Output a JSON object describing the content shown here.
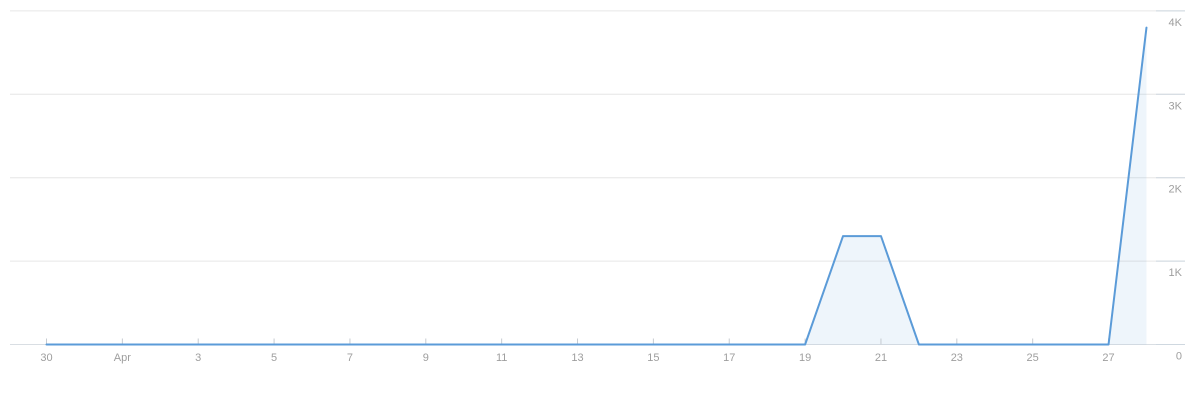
{
  "chart_data": {
    "type": "area",
    "title": "",
    "xlabel": "",
    "ylabel": "",
    "x": [
      "Mar 30",
      "Mar 31",
      "Apr 1",
      "Apr 2",
      "Apr 3",
      "Apr 4",
      "Apr 5",
      "Apr 6",
      "Apr 7",
      "Apr 8",
      "Apr 9",
      "Apr 10",
      "Apr 11",
      "Apr 12",
      "Apr 13",
      "Apr 14",
      "Apr 15",
      "Apr 16",
      "Apr 17",
      "Apr 18",
      "Apr 19",
      "Apr 20",
      "Apr 21",
      "Apr 22",
      "Apr 23",
      "Apr 24",
      "Apr 25",
      "Apr 26",
      "Apr 27",
      "Apr 28"
    ],
    "values": [
      0,
      0,
      0,
      0,
      0,
      0,
      0,
      0,
      0,
      0,
      0,
      0,
      0,
      0,
      0,
      0,
      0,
      0,
      0,
      0,
      0,
      1300,
      1300,
      0,
      0,
      0,
      0,
      0,
      0,
      3800
    ],
    "x_axis": {
      "ticks": [
        {
          "index": 0,
          "label": "30"
        },
        {
          "index": 2,
          "label": "Apr"
        },
        {
          "index": 4,
          "label": "3"
        },
        {
          "index": 6,
          "label": "5"
        },
        {
          "index": 8,
          "label": "7"
        },
        {
          "index": 10,
          "label": "9"
        },
        {
          "index": 12,
          "label": "11"
        },
        {
          "index": 14,
          "label": "13"
        },
        {
          "index": 16,
          "label": "15"
        },
        {
          "index": 18,
          "label": "17"
        },
        {
          "index": 20,
          "label": "19"
        },
        {
          "index": 22,
          "label": "21"
        },
        {
          "index": 24,
          "label": "23"
        },
        {
          "index": 26,
          "label": "25"
        },
        {
          "index": 28,
          "label": "27"
        }
      ]
    },
    "y_axis": {
      "position": "right",
      "range": [
        0,
        4000
      ],
      "ticks": [
        {
          "value": 0,
          "label": "0"
        },
        {
          "value": 1000,
          "label": "1K"
        },
        {
          "value": 2000,
          "label": "2K"
        },
        {
          "value": 3000,
          "label": "3K"
        },
        {
          "value": 4000,
          "label": "4K"
        }
      ]
    },
    "grid": "horizontal",
    "legend": "none",
    "fill_opacity": 0.1,
    "colors": {
      "line": "#5b9bd8",
      "grid": "#e6e6e6",
      "grid_right_segment": "#cfd8e0",
      "baseline": "#d9dee3",
      "tick": "#c6cbd1",
      "label": "#9e9e9e",
      "background": "#ffffff"
    }
  }
}
